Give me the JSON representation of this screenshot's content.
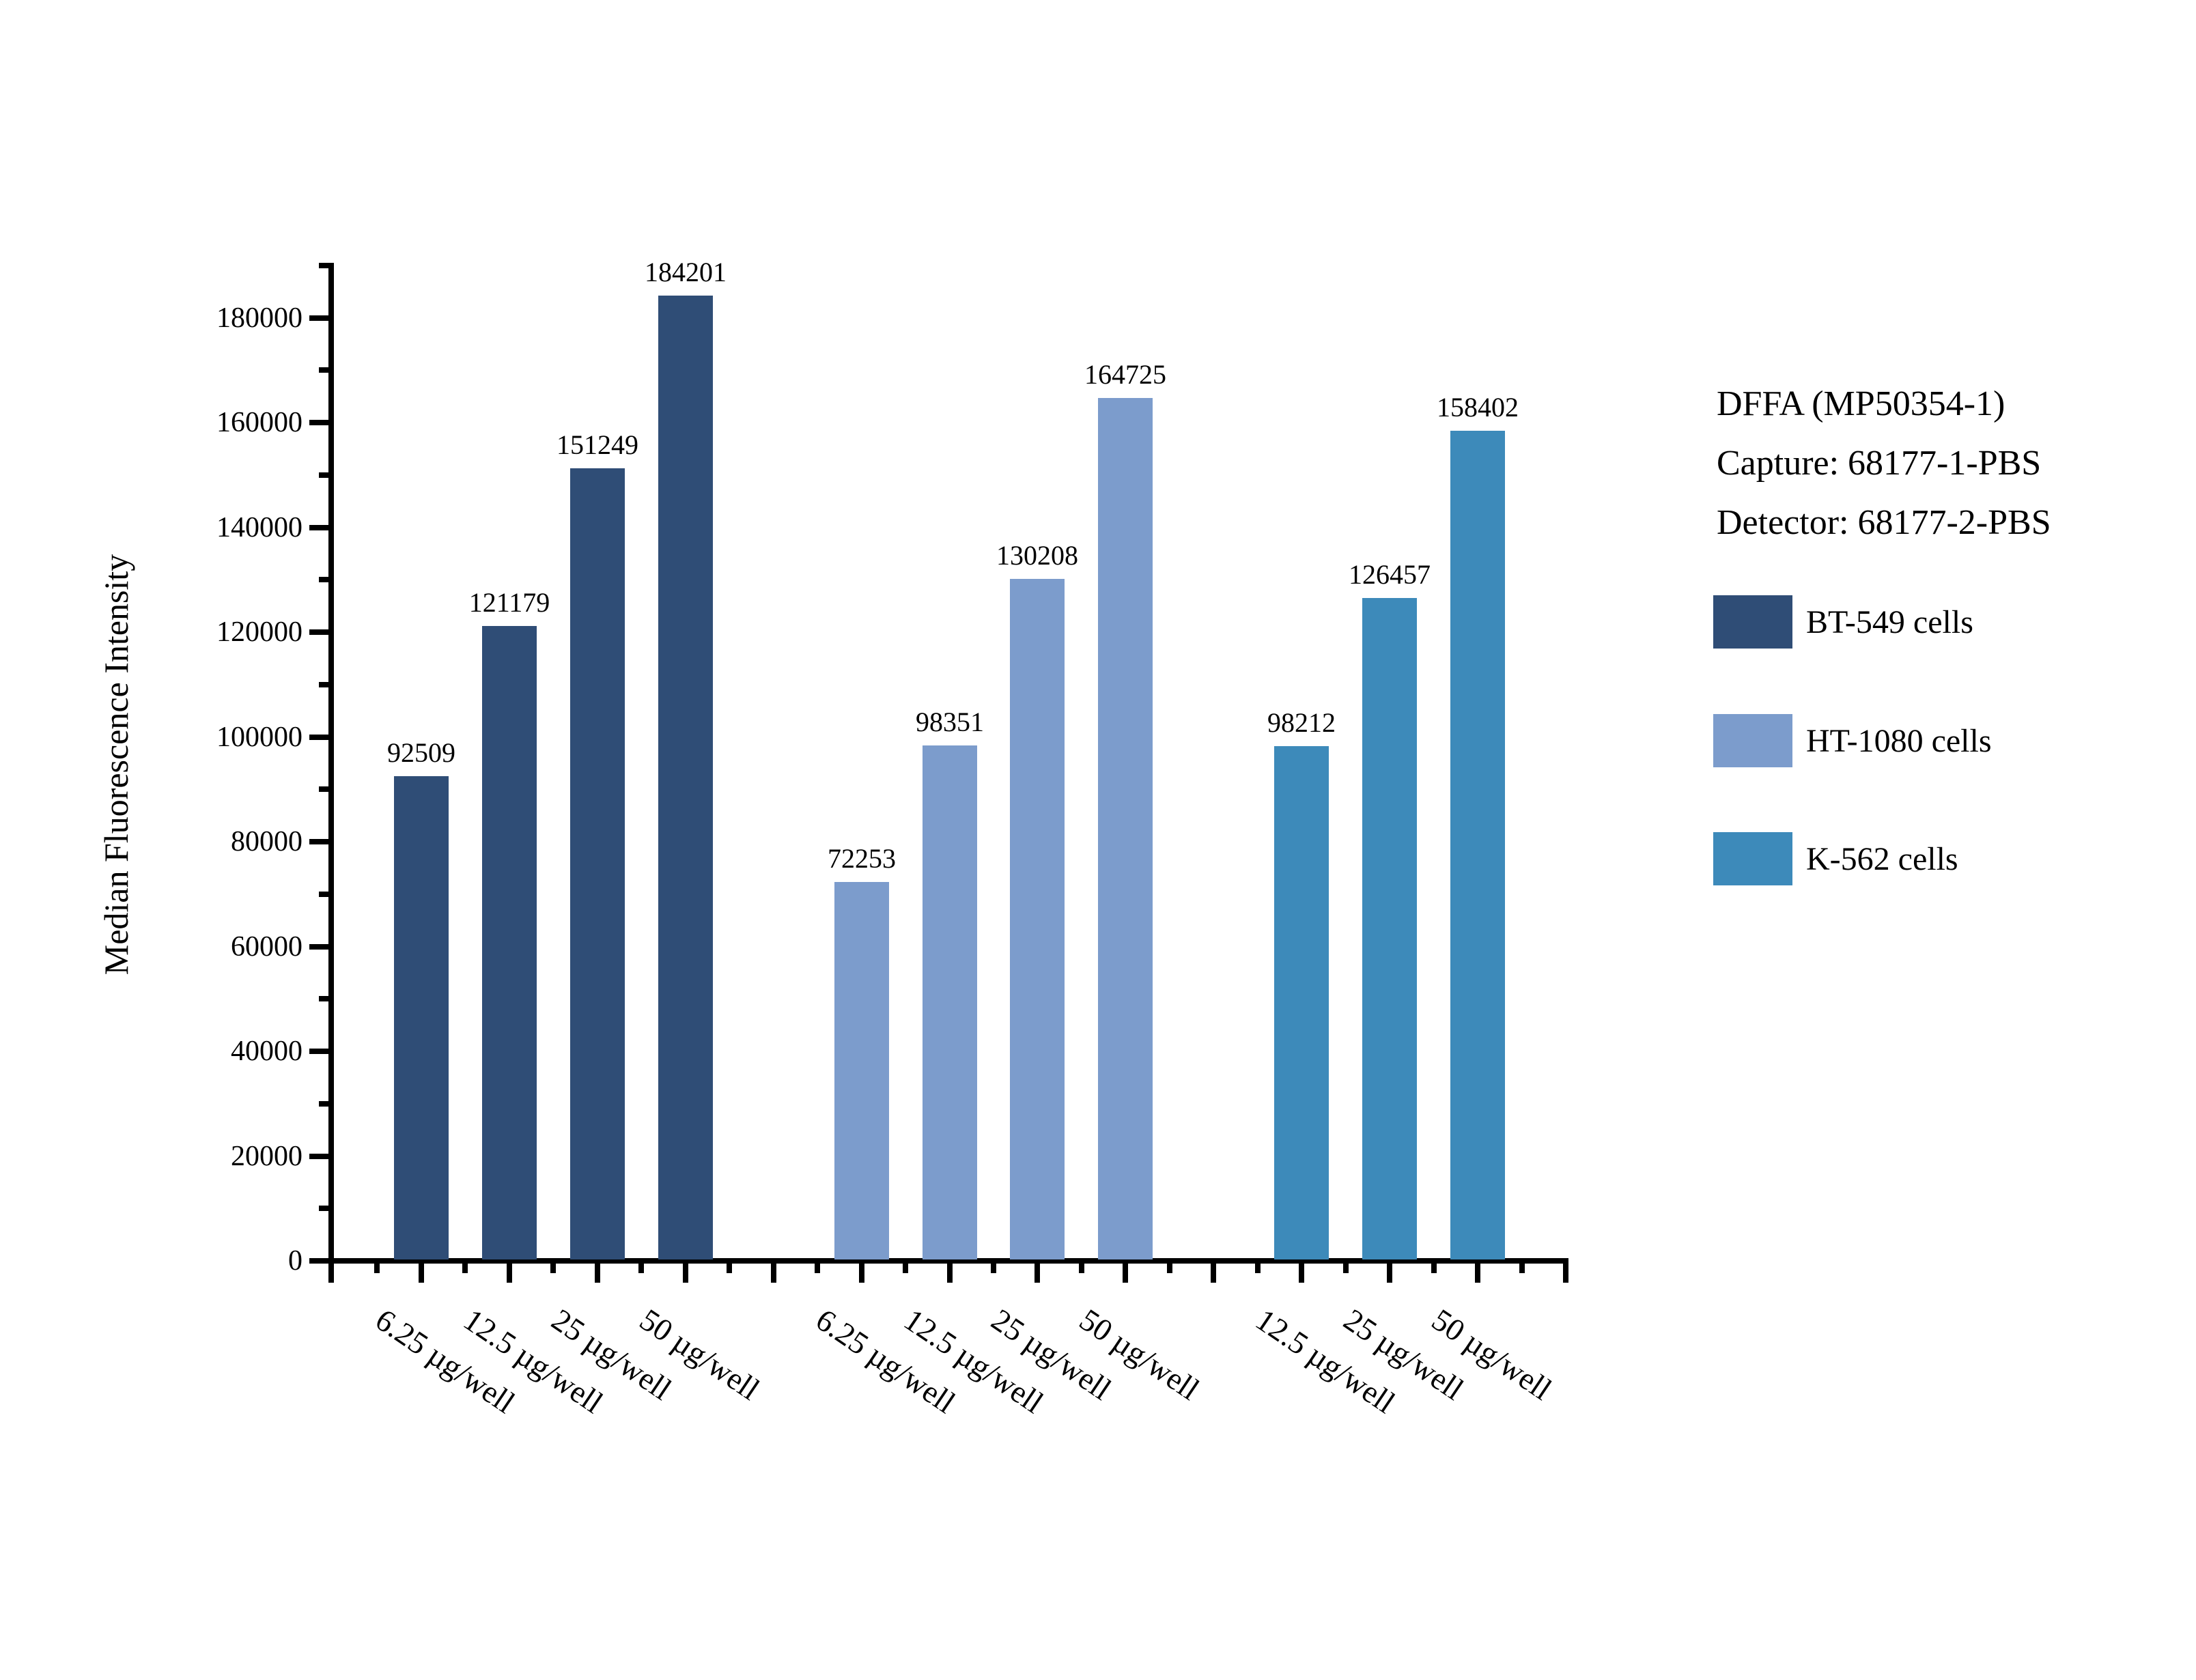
{
  "chart_data": {
    "type": "bar",
    "title_block": [
      "DFFA (MP50354-1)",
      "Capture: 68177-1-PBS",
      "Detector: 68177-2-PBS"
    ],
    "ylabel": "Median Fluorescence Intensity",
    "y_axis": {
      "min": 0,
      "max": 190000,
      "major_step": 20000,
      "minor_step": 10000,
      "tick_labels": [
        "0",
        "20000",
        "40000",
        "60000",
        "80000",
        "100000",
        "120000",
        "140000",
        "160000",
        "180000"
      ]
    },
    "series": [
      {
        "name": "BT-549 cells",
        "color": "#2F4D76",
        "categories": [
          "6.25 µg/well",
          "12.5 µg/well",
          "25 µg/well",
          "50 µg/well"
        ],
        "values": [
          92509,
          121179,
          151249,
          184201
        ]
      },
      {
        "name": "HT-1080 cells",
        "color": "#7C9CCC",
        "categories": [
          "6.25 µg/well",
          "12.5 µg/well",
          "25 µg/well",
          "50 µg/well"
        ],
        "values": [
          72253,
          98351,
          130208,
          164725
        ]
      },
      {
        "name": "K-562 cells",
        "color": "#3D8ABA",
        "categories": [
          "12.5 µg/well",
          "25 µg/well",
          "50 µg/well"
        ],
        "values": [
          98212,
          126457,
          158402
        ]
      }
    ],
    "bar_value_labels": true,
    "grid": false,
    "legend_position": "right",
    "axis_color": "#000000",
    "background": "#ffffff"
  }
}
